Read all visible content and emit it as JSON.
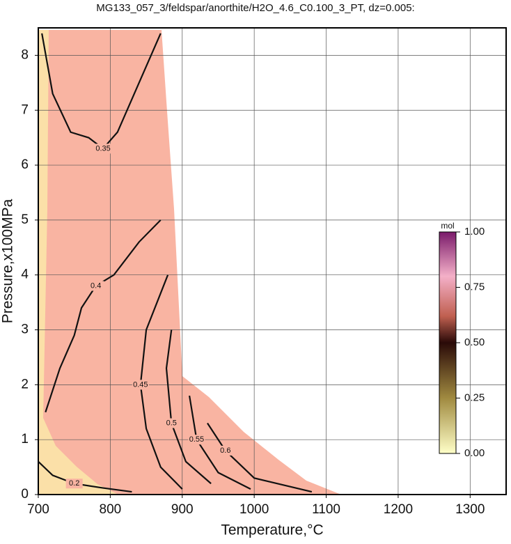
{
  "chart_data": {
    "type": "contour",
    "title": "MG133_057_3/feldspar/anorthite/H2O_4.6_C0.100_3_PT, dz=0.005:",
    "xlabel": "Temperature,°C",
    "ylabel": "Pressure,x100MPa",
    "xlim": [
      700,
      1350
    ],
    "ylim": [
      0,
      8.5
    ],
    "xticks": [
      700,
      800,
      900,
      1000,
      1100,
      1200,
      1300
    ],
    "yticks": [
      0,
      1,
      2,
      3,
      4,
      5,
      6,
      7,
      8
    ],
    "grid": true,
    "color": "#111111",
    "contours": [
      {
        "level": 0.2,
        "x": [
          700,
          720,
          750,
          790,
          830
        ],
        "y": [
          0.6,
          0.35,
          0.2,
          0.12,
          0.05
        ]
      },
      {
        "level": 0.35,
        "x": [
          705,
          720,
          745,
          770,
          790,
          810,
          840,
          870
        ],
        "y": [
          8.4,
          7.3,
          6.6,
          6.5,
          6.3,
          6.6,
          7.5,
          8.4
        ]
      },
      {
        "level": 0.4,
        "x": [
          710,
          730,
          750,
          760,
          780,
          805,
          840,
          870
        ],
        "y": [
          1.5,
          2.3,
          2.9,
          3.4,
          3.8,
          4.0,
          4.6,
          5.0
        ]
      },
      {
        "level": 0.45,
        "x": [
          900,
          870,
          850,
          842,
          850,
          880
        ],
        "y": [
          0.1,
          0.5,
          1.2,
          2.0,
          3.0,
          4.0
        ]
      },
      {
        "level": 0.5,
        "x": [
          940,
          905,
          885,
          878,
          885
        ],
        "y": [
          0.2,
          0.6,
          1.3,
          2.3,
          3.0
        ]
      },
      {
        "level": 0.55,
        "x": [
          995,
          950,
          920,
          910
        ],
        "y": [
          0.1,
          0.4,
          1.0,
          1.8
        ]
      },
      {
        "level": 0.6,
        "x": [
          1080,
          1000,
          960,
          935
        ],
        "y": [
          0.05,
          0.3,
          0.8,
          1.3
        ]
      }
    ],
    "colorbar": {
      "label": "mol",
      "lim": [
        0,
        1
      ],
      "ticks": [
        {
          "value": 0,
          "label": "0.00"
        },
        {
          "value": 0.25,
          "label": "0.25"
        },
        {
          "value": 0.5,
          "label": "0.50"
        },
        {
          "value": 0.75,
          "label": "0.75"
        },
        {
          "value": 1,
          "label": "1.00"
        }
      ]
    }
  }
}
